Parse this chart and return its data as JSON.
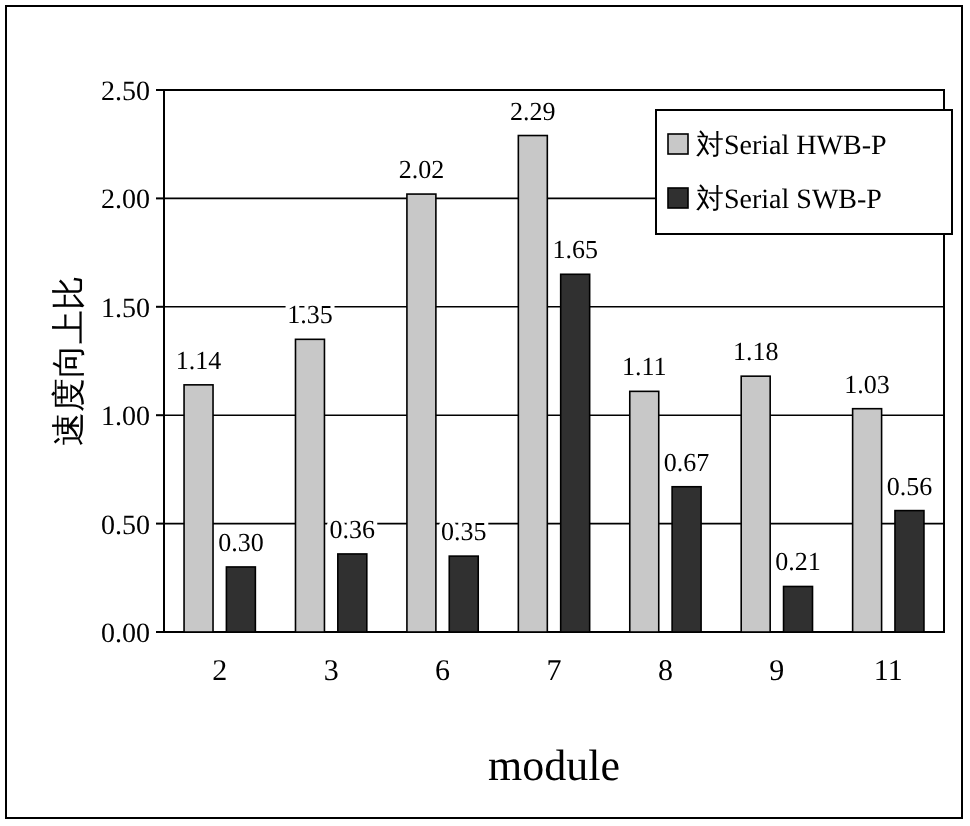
{
  "chart_data": {
    "type": "bar",
    "xlabel": "module",
    "ylabel": "速度向上比",
    "categories": [
      "2",
      "3",
      "6",
      "7",
      "8",
      "9",
      "11"
    ],
    "series": [
      {
        "name": "対Serial HWB-P",
        "color": "#c8c8c8",
        "values": [
          1.14,
          1.35,
          2.02,
          2.29,
          1.11,
          1.18,
          1.03
        ],
        "value_labels": [
          "1.14",
          "1.35",
          "2.02",
          "2.29",
          "1.11",
          "1.18",
          "1.03"
        ]
      },
      {
        "name": "対Serial SWB-P",
        "color": "#303030",
        "values": [
          0.3,
          0.36,
          0.35,
          1.65,
          0.67,
          0.21,
          0.56
        ],
        "value_labels": [
          "0.30",
          "0.36",
          "0.35",
          "1.65",
          "0.67",
          "0.21",
          "0.56"
        ]
      }
    ],
    "ylim": [
      0,
      2.5
    ],
    "yticks": [
      {
        "value": 0,
        "label": "0.00"
      },
      {
        "value": 0.5,
        "label": "0.50"
      },
      {
        "value": 1,
        "label": "1.00"
      },
      {
        "value": 1.5,
        "label": "1.50"
      },
      {
        "value": 2,
        "label": "2.00"
      },
      {
        "value": 2.5,
        "label": "2.50"
      }
    ],
    "grid": "y",
    "legend": "top right"
  }
}
